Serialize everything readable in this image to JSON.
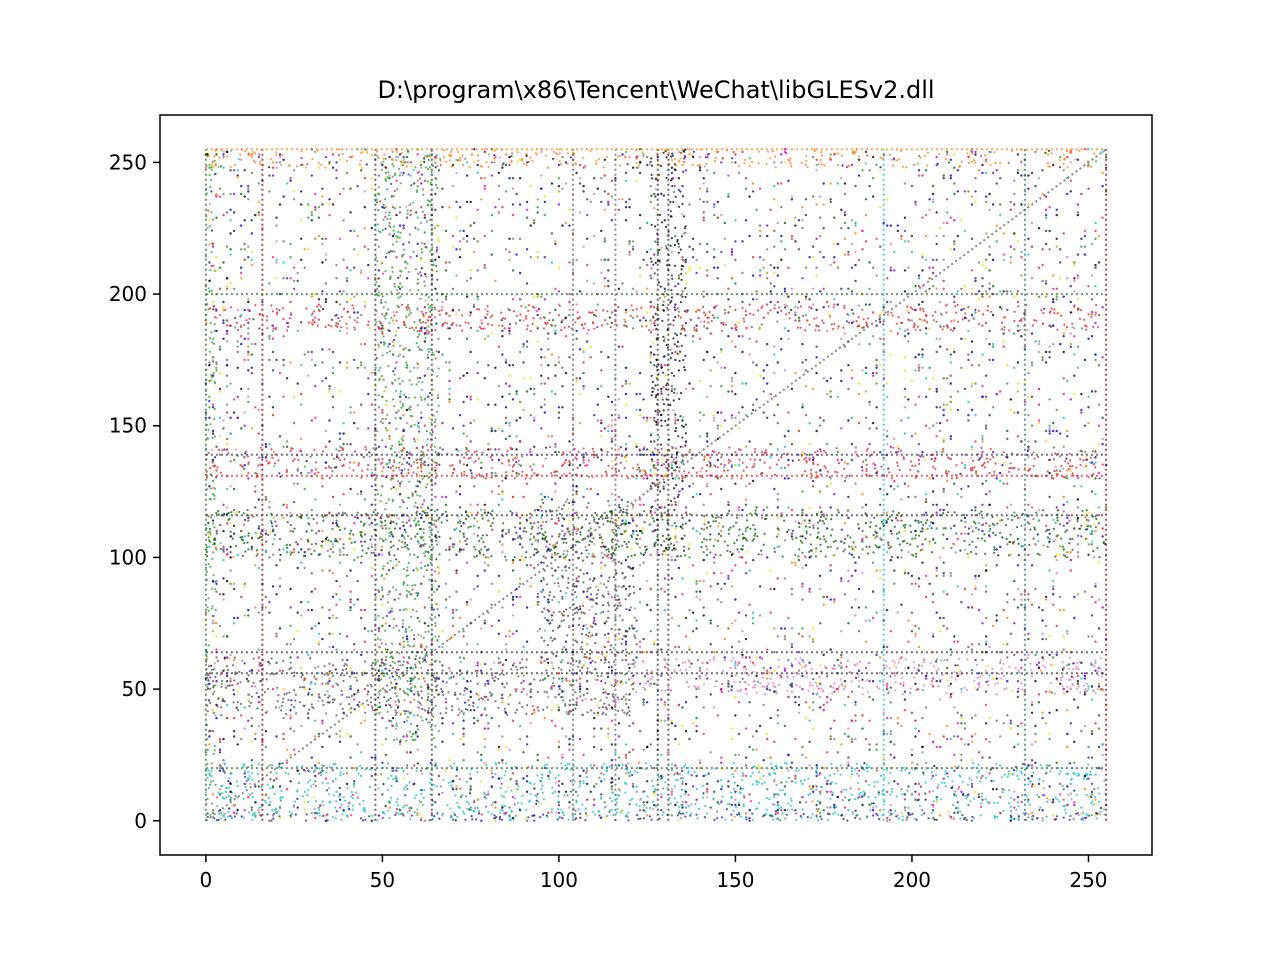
{
  "chart_data": {
    "type": "scatter",
    "title": "D:\\program\\x86\\Tencent\\WeChat\\libGLESv2.dll",
    "xlabel": "",
    "ylabel": "",
    "xlim": [
      -13,
      268
    ],
    "ylim": [
      -13,
      268
    ],
    "grid": false,
    "legend": "none",
    "x_ticks": [
      0,
      50,
      100,
      150,
      200,
      250
    ],
    "y_ticks": [
      0,
      50,
      100,
      150,
      200,
      250
    ],
    "x_tick_labels": [
      "0",
      "50",
      "100",
      "150",
      "200",
      "250"
    ],
    "y_tick_labels": [
      "0",
      "50",
      "100",
      "150",
      "200",
      "250"
    ],
    "point_domain": [
      0,
      255
    ],
    "point_colors": [
      "#000000",
      "#1f1f8f",
      "#0000cc",
      "#2ca02c",
      "#d62728",
      "#9400d3",
      "#e377c2",
      "#17becf",
      "#8c564b",
      "#ffd700",
      "#ff7f0e",
      "#7f7f7f",
      "#006400",
      "#00008b",
      "#ff1493"
    ],
    "dense_regions": [
      {
        "x": [
          0,
          3
        ],
        "y": [
          0,
          255
        ],
        "color": "#2ca02c"
      },
      {
        "x": [
          0,
          255
        ],
        "y": [
          0,
          3
        ],
        "color": "#1f1f8f"
      },
      {
        "x": [
          48,
          66
        ],
        "y": [
          30,
          255
        ],
        "color": "#2ca02c"
      },
      {
        "x": [
          0,
          120
        ],
        "y": [
          40,
          62
        ],
        "color": "#5a4a5a"
      },
      {
        "x": [
          120,
          255
        ],
        "y": [
          48,
          62
        ],
        "color": "#e377c2"
      },
      {
        "x": [
          94,
          122
        ],
        "y": [
          60,
          122
        ],
        "color": "#404040"
      },
      {
        "x": [
          126,
          136
        ],
        "y": [
          100,
          255
        ],
        "color": "#000000"
      },
      {
        "x": [
          0,
          255
        ],
        "y": [
          130,
          142
        ],
        "color": "#d62728"
      },
      {
        "x": [
          0,
          255
        ],
        "y": [
          248,
          255
        ],
        "color": "#ff7f0e"
      },
      {
        "x": [
          0,
          255
        ],
        "y": [
          0,
          22
        ],
        "color": "#17becf"
      },
      {
        "x": [
          0,
          255
        ],
        "y": [
          186,
          196
        ],
        "color": "#d62728"
      },
      {
        "x": [
          0,
          255
        ],
        "y": [
          100,
          118
        ],
        "color": "#006400"
      }
    ],
    "line_marks": [
      {
        "x": [
          0,
          255
        ],
        "y": [
          0,
          255
        ],
        "color": "#555555"
      },
      {
        "x": [
          0,
          0
        ],
        "y": [
          0,
          255
        ],
        "color": "#1f6f1f"
      },
      {
        "x": [
          16,
          16
        ],
        "y": [
          0,
          255
        ],
        "color": "#8b0000"
      },
      {
        "x": [
          48,
          48
        ],
        "y": [
          0,
          255
        ],
        "color": "#2f2f2f"
      },
      {
        "x": [
          64,
          64
        ],
        "y": [
          0,
          255
        ],
        "color": "#2f2f2f"
      },
      {
        "x": [
          104,
          104
        ],
        "y": [
          0,
          255
        ],
        "color": "#606060"
      },
      {
        "x": [
          116,
          116
        ],
        "y": [
          0,
          255
        ],
        "color": "#606060"
      },
      {
        "x": [
          128,
          128
        ],
        "y": [
          0,
          255
        ],
        "color": "#2f2f2f"
      },
      {
        "x": [
          131,
          131
        ],
        "y": [
          0,
          255
        ],
        "color": "#2f2f2f"
      },
      {
        "x": [
          192,
          192
        ],
        "y": [
          0,
          255
        ],
        "color": "#17becf"
      },
      {
        "x": [
          232,
          232
        ],
        "y": [
          0,
          255
        ],
        "color": "#1f6f6f"
      },
      {
        "x": [
          255,
          255
        ],
        "y": [
          0,
          255
        ],
        "color": "#8b0000"
      },
      {
        "x": [
          0,
          255
        ],
        "y": [
          255,
          255
        ],
        "color": "#ff7f0e"
      },
      {
        "x": [
          0,
          255
        ],
        "y": [
          139,
          139
        ],
        "color": "#2f2f5f"
      },
      {
        "x": [
          0,
          255
        ],
        "y": [
          131,
          131
        ],
        "color": "#d62728"
      },
      {
        "x": [
          0,
          255
        ],
        "y": [
          56,
          56
        ],
        "color": "#2f2f2f"
      },
      {
        "x": [
          0,
          255
        ],
        "y": [
          64,
          64
        ],
        "color": "#2f2f2f"
      },
      {
        "x": [
          0,
          255
        ],
        "y": [
          20,
          20
        ],
        "color": "#1f6f1f"
      },
      {
        "x": [
          0,
          255
        ],
        "y": [
          200,
          200
        ],
        "color": "#1f6f1f"
      },
      {
        "x": [
          0,
          255
        ],
        "y": [
          116,
          116
        ],
        "color": "#2f2f2f"
      }
    ]
  }
}
